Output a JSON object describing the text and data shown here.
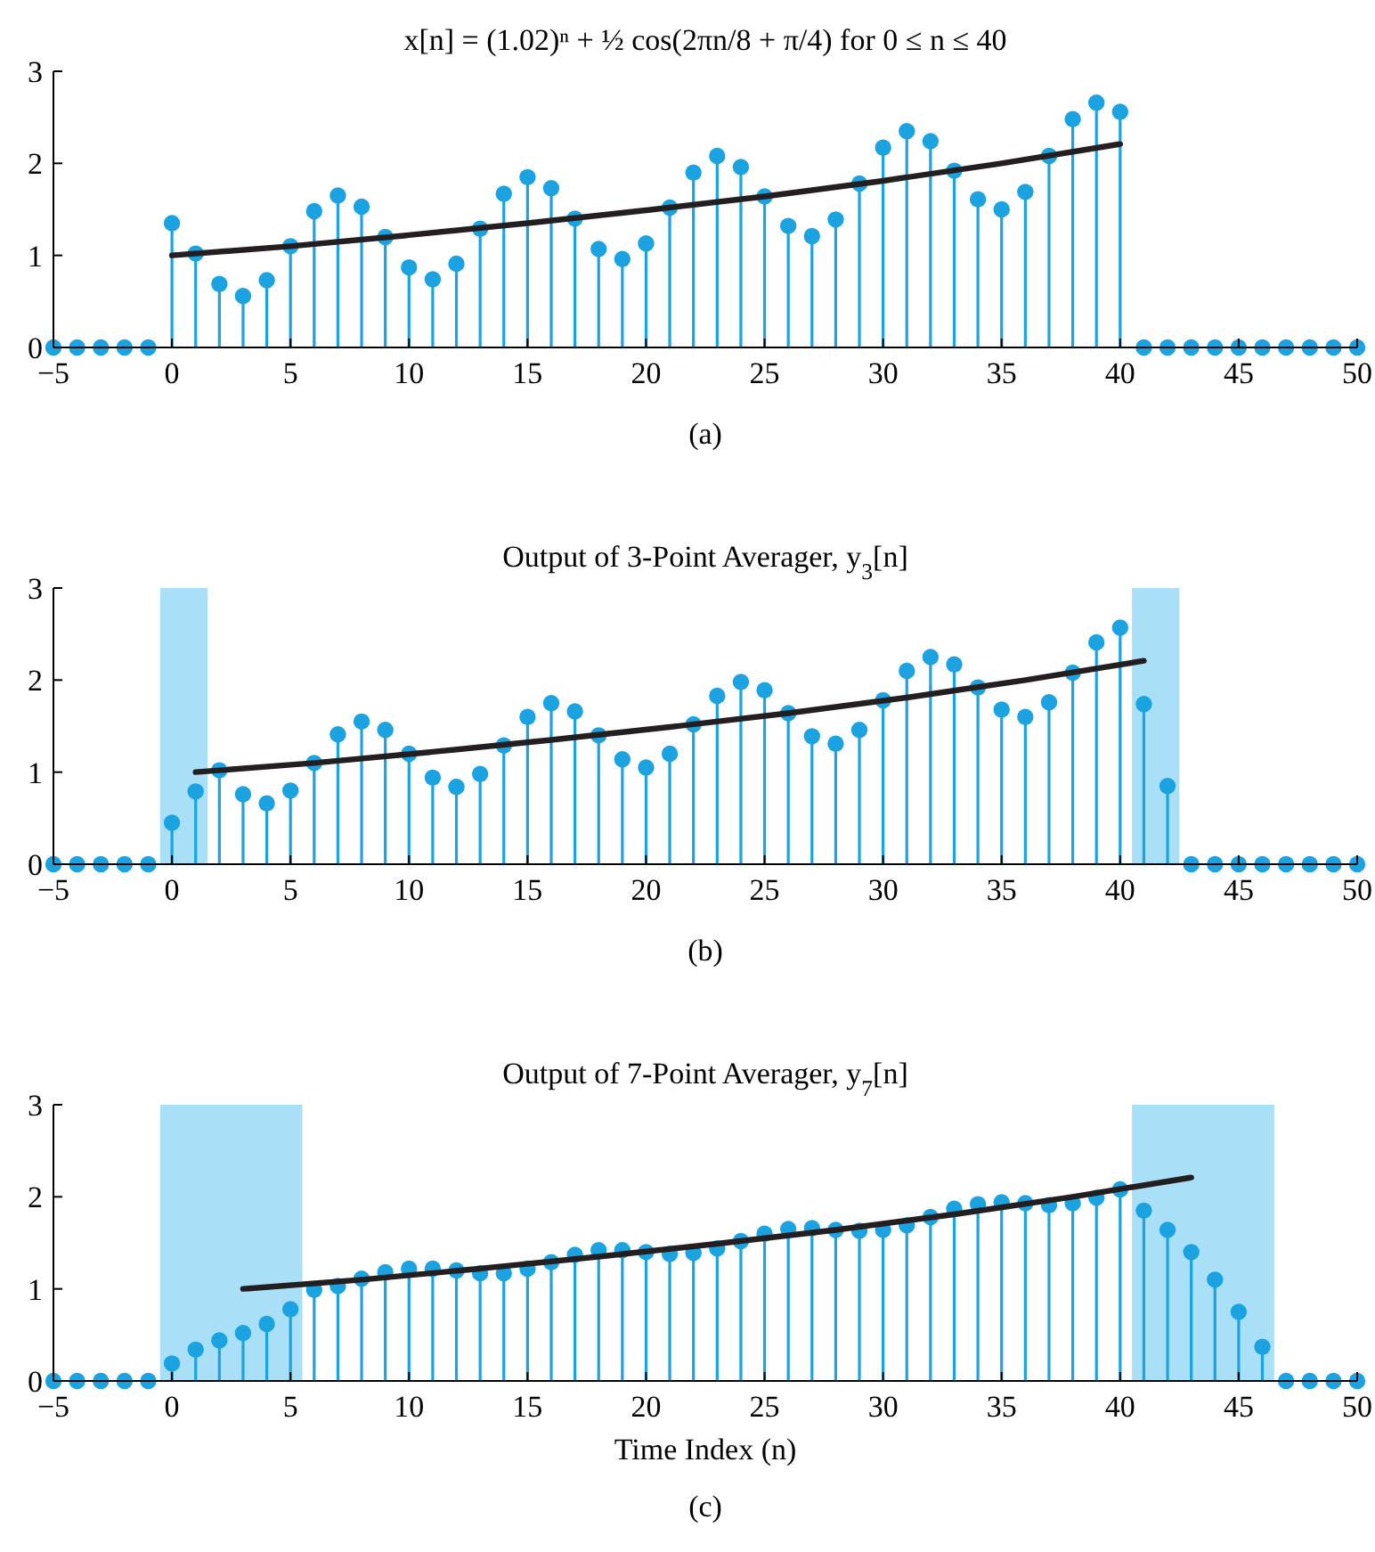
{
  "chart_data": [
    {
      "type": "lollipop",
      "title": "x[n] = (1.02)ⁿ + ½ cos(2πn/8 + π/4) for 0 ≤ n ≤ 40",
      "annotations": [
        "(a)"
      ],
      "xlim": [
        -5,
        50
      ],
      "ylim": [
        0,
        3
      ],
      "xticks": [
        -5,
        0,
        5,
        10,
        15,
        20,
        25,
        30,
        35,
        40,
        45,
        50
      ],
      "yticks": [
        0,
        1,
        2,
        3
      ],
      "series": [
        {
          "marker": "circle",
          "color": "#1aa3e0",
          "x": [
            -5,
            -4,
            -3,
            -2,
            -1,
            0,
            1,
            2,
            3,
            4,
            5,
            6,
            7,
            8,
            9,
            10,
            11,
            12,
            13,
            14,
            15,
            16,
            17,
            18,
            19,
            20,
            21,
            22,
            23,
            24,
            25,
            26,
            27,
            28,
            29,
            30,
            31,
            32,
            33,
            34,
            35,
            36,
            37,
            38,
            39,
            40,
            41,
            42,
            43,
            44,
            45,
            46,
            47,
            48,
            49,
            50
          ],
          "values": [
            0,
            0,
            0,
            0,
            0,
            1.35,
            1.02,
            0.69,
            0.56,
            0.73,
            1.1,
            1.48,
            1.65,
            1.53,
            1.2,
            0.87,
            0.74,
            0.91,
            1.29,
            1.67,
            1.85,
            1.73,
            1.4,
            1.07,
            0.96,
            1.13,
            1.52,
            1.9,
            2.08,
            1.96,
            1.64,
            1.32,
            1.21,
            1.39,
            1.78,
            2.17,
            2.35,
            2.24,
            1.92,
            1.61,
            1.5,
            1.69,
            2.08,
            2.48,
            2.66,
            2.56,
            0,
            0,
            0,
            0,
            0,
            0,
            0,
            0,
            0,
            0
          ]
        },
        {
          "type": "line",
          "color": "#231f20",
          "x": [
            0,
            5,
            10,
            15,
            20,
            25,
            30,
            35,
            40
          ],
          "values": [
            1,
            1.1,
            1.22,
            1.35,
            1.49,
            1.64,
            1.81,
            2.0,
            2.21
          ]
        }
      ]
    },
    {
      "type": "lollipop",
      "title": "Output of 3-Point Averager, y$_{3}$[n]",
      "annotations": [
        "(b)"
      ],
      "xlim": [
        -5,
        50
      ],
      "ylim": [
        0,
        3
      ],
      "xticks": [
        -5,
        0,
        5,
        10,
        15,
        20,
        25,
        30,
        35,
        40,
        45,
        50
      ],
      "yticks": [
        0,
        1,
        2,
        3
      ],
      "bands": [
        {
          "axis": "x",
          "from": -0.5,
          "to": 1.5,
          "color": "#aadff8"
        },
        {
          "axis": "x",
          "from": 40.5,
          "to": 42.5,
          "color": "#aadff8"
        }
      ],
      "series": [
        {
          "marker": "circle",
          "color": "#1aa3e0",
          "x": [
            -5,
            -4,
            -3,
            -2,
            -1,
            0,
            1,
            2,
            3,
            4,
            5,
            6,
            7,
            8,
            9,
            10,
            11,
            12,
            13,
            14,
            15,
            16,
            17,
            18,
            19,
            20,
            21,
            22,
            23,
            24,
            25,
            26,
            27,
            28,
            29,
            30,
            31,
            32,
            33,
            34,
            35,
            36,
            37,
            38,
            39,
            40,
            41,
            42,
            43,
            44,
            45,
            46,
            47,
            48,
            49,
            50
          ],
          "values": [
            0,
            0,
            0,
            0,
            0,
            0.45,
            0.79,
            1.02,
            0.76,
            0.66,
            0.8,
            1.1,
            1.41,
            1.55,
            1.46,
            1.2,
            0.94,
            0.84,
            0.98,
            1.29,
            1.6,
            1.75,
            1.66,
            1.4,
            1.14,
            1.05,
            1.2,
            1.52,
            1.83,
            1.98,
            1.89,
            1.64,
            1.39,
            1.31,
            1.46,
            1.78,
            2.1,
            2.25,
            2.17,
            1.92,
            1.68,
            1.6,
            1.76,
            2.08,
            2.41,
            2.57,
            1.74,
            0.85,
            0,
            0,
            0,
            0,
            0,
            0,
            0,
            0
          ]
        },
        {
          "type": "line",
          "color": "#231f20",
          "x": [
            1,
            6,
            11,
            16,
            21,
            26,
            31,
            36,
            41
          ],
          "values": [
            1,
            1.1,
            1.22,
            1.35,
            1.49,
            1.64,
            1.81,
            2.0,
            2.21
          ]
        }
      ]
    },
    {
      "type": "lollipop",
      "title": "Output of 7-Point Averager, y$_{7}$[n]",
      "xlabel": "Time Index (n)",
      "annotations": [
        "(c)"
      ],
      "xlim": [
        -5,
        50
      ],
      "ylim": [
        0,
        3
      ],
      "xticks": [
        -5,
        0,
        5,
        10,
        15,
        20,
        25,
        30,
        35,
        40,
        45,
        50
      ],
      "yticks": [
        0,
        1,
        2,
        3
      ],
      "bands": [
        {
          "axis": "x",
          "from": -0.5,
          "to": 5.5,
          "color": "#aadff8"
        },
        {
          "axis": "x",
          "from": 40.5,
          "to": 46.5,
          "color": "#aadff8"
        }
      ],
      "series": [
        {
          "marker": "circle",
          "color": "#1aa3e0",
          "x": [
            -5,
            -4,
            -3,
            -2,
            -1,
            0,
            1,
            2,
            3,
            4,
            5,
            6,
            7,
            8,
            9,
            10,
            11,
            12,
            13,
            14,
            15,
            16,
            17,
            18,
            19,
            20,
            21,
            22,
            23,
            24,
            25,
            26,
            27,
            28,
            29,
            30,
            31,
            32,
            33,
            34,
            35,
            36,
            37,
            38,
            39,
            40,
            41,
            42,
            43,
            44,
            45,
            46,
            47,
            48,
            49,
            50
          ],
          "values": [
            0,
            0,
            0,
            0,
            0,
            0.19,
            0.34,
            0.44,
            0.52,
            0.62,
            0.78,
            0.99,
            1.03,
            1.11,
            1.18,
            1.22,
            1.22,
            1.2,
            1.17,
            1.17,
            1.22,
            1.29,
            1.37,
            1.42,
            1.42,
            1.4,
            1.38,
            1.39,
            1.44,
            1.52,
            1.6,
            1.65,
            1.66,
            1.64,
            1.63,
            1.64,
            1.69,
            1.78,
            1.87,
            1.92,
            1.94,
            1.93,
            1.91,
            1.93,
            1.99,
            2.08,
            1.85,
            1.64,
            1.4,
            1.1,
            0.75,
            0.37,
            0,
            0,
            0,
            0
          ]
        },
        {
          "type": "line",
          "color": "#231f20",
          "x": [
            3,
            8,
            13,
            18,
            23,
            28,
            33,
            38,
            43
          ],
          "values": [
            1,
            1.1,
            1.22,
            1.35,
            1.49,
            1.64,
            1.81,
            2.0,
            2.21
          ]
        }
      ]
    }
  ]
}
